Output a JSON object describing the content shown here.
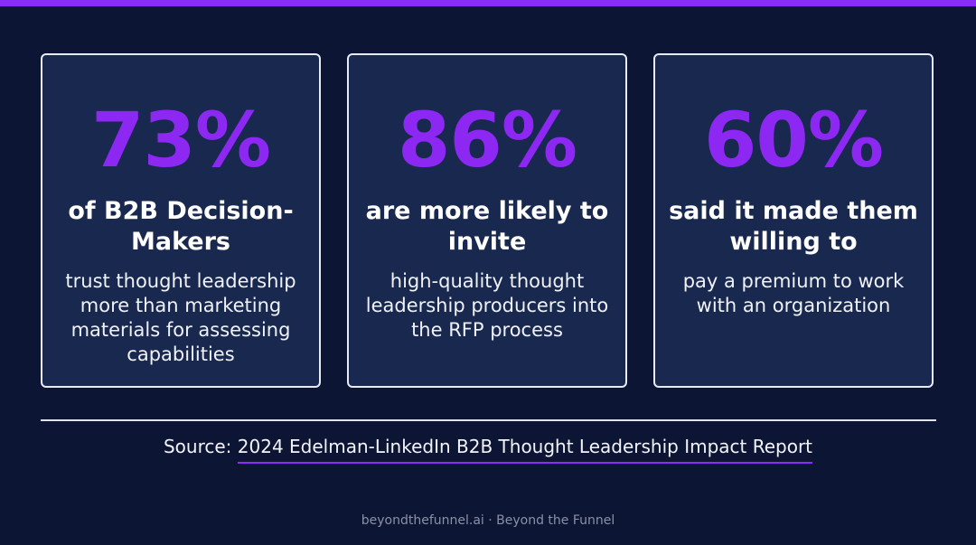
{
  "stats": [
    {
      "value": "73%",
      "headline": "of B2B Decision-Makers",
      "description": "trust thought leadership more than marketing materials for assessing capabilities"
    },
    {
      "value": "86%",
      "headline": "are more likely to invite",
      "description": "high-quality thought leadership producers into the RFP process"
    },
    {
      "value": "60%",
      "headline": "said it made them willing to",
      "description": "pay a premium to work with an organization"
    }
  ],
  "source": {
    "label": "Source:",
    "link_text": "2024 Edelman-LinkedIn B2B Thought Leadership Impact Report"
  },
  "footer": {
    "text": "beyondthefunnel.ai · Beyond the Funnel"
  },
  "colors": {
    "background": "#0c1534",
    "accent": "#8d28f2",
    "card": "#18284f"
  }
}
